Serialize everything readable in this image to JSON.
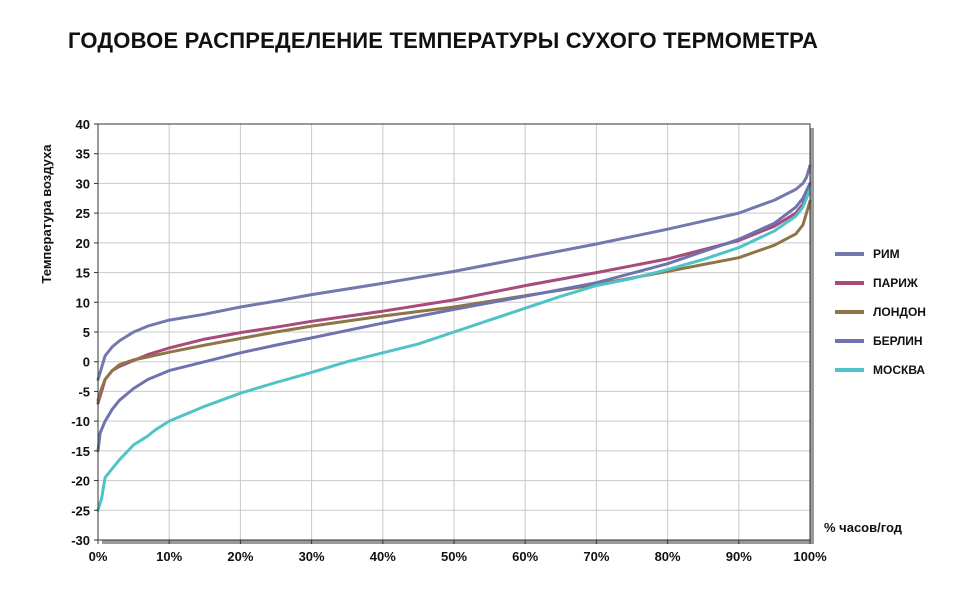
{
  "chart_data": {
    "type": "line",
    "title": "ГОДОВОЕ РАСПРЕДЕЛЕНИЕ ТЕМПЕРАТУРЫ СУХОГО ТЕРМОМЕТРА",
    "xlabel": "% часов/год",
    "ylabel": "Температура воздуха",
    "xlim": [
      0,
      100
    ],
    "ylim": [
      -30,
      40
    ],
    "x_ticks": [
      "0%",
      "10%",
      "20%",
      "30%",
      "40%",
      "50%",
      "60%",
      "70%",
      "80%",
      "90%",
      "100%"
    ],
    "y_ticks": [
      40,
      35,
      30,
      25,
      20,
      15,
      10,
      5,
      0,
      -5,
      -10,
      -15,
      -20,
      -25,
      -30
    ],
    "grid": true,
    "legend_position": "right",
    "series": [
      {
        "name": "РИМ",
        "color": "#7479ad",
        "points": [
          [
            0,
            -3
          ],
          [
            0.5,
            -1
          ],
          [
            1,
            1
          ],
          [
            2,
            2.5
          ],
          [
            3,
            3.5
          ],
          [
            5,
            5
          ],
          [
            7,
            6
          ],
          [
            10,
            7
          ],
          [
            15,
            8
          ],
          [
            20,
            9.2
          ],
          [
            25,
            10.2
          ],
          [
            30,
            11.3
          ],
          [
            40,
            13.2
          ],
          [
            50,
            15.2
          ],
          [
            60,
            17.5
          ],
          [
            70,
            19.8
          ],
          [
            80,
            22.3
          ],
          [
            90,
            25
          ],
          [
            95,
            27.2
          ],
          [
            98,
            29
          ],
          [
            99,
            30
          ],
          [
            99.5,
            31
          ],
          [
            100,
            33
          ]
        ]
      },
      {
        "name": "ПАРИЖ",
        "color": "#a84a7a",
        "points": [
          [
            0,
            -7
          ],
          [
            0.5,
            -5
          ],
          [
            1,
            -3
          ],
          [
            2,
            -1.5
          ],
          [
            3,
            -0.8
          ],
          [
            5,
            0.2
          ],
          [
            7,
            1.2
          ],
          [
            10,
            2.3
          ],
          [
            15,
            3.8
          ],
          [
            20,
            4.9
          ],
          [
            25,
            5.8
          ],
          [
            30,
            6.8
          ],
          [
            40,
            8.5
          ],
          [
            50,
            10.4
          ],
          [
            60,
            12.8
          ],
          [
            70,
            15
          ],
          [
            80,
            17.3
          ],
          [
            90,
            20.4
          ],
          [
            95,
            22.8
          ],
          [
            98,
            25
          ],
          [
            99,
            26.5
          ],
          [
            100,
            30
          ]
        ]
      },
      {
        "name": "ЛОНДОН",
        "color": "#8d7545",
        "points": [
          [
            0,
            -6.5
          ],
          [
            0.5,
            -4.5
          ],
          [
            1,
            -3
          ],
          [
            2,
            -1.5
          ],
          [
            3,
            -0.5
          ],
          [
            5,
            0.3
          ],
          [
            7,
            0.8
          ],
          [
            10,
            1.6
          ],
          [
            15,
            2.8
          ],
          [
            20,
            3.9
          ],
          [
            25,
            5
          ],
          [
            30,
            6
          ],
          [
            40,
            7.7
          ],
          [
            50,
            9.2
          ],
          [
            60,
            11.1
          ],
          [
            70,
            13
          ],
          [
            80,
            15.2
          ],
          [
            90,
            17.5
          ],
          [
            95,
            19.6
          ],
          [
            98,
            21.5
          ],
          [
            99,
            23
          ],
          [
            100,
            27
          ]
        ]
      },
      {
        "name": "БЕРЛИН",
        "color": "#6e73b0",
        "points": [
          [
            0,
            -15
          ],
          [
            0.3,
            -12
          ],
          [
            1,
            -10
          ],
          [
            2,
            -8
          ],
          [
            3,
            -6.5
          ],
          [
            5,
            -4.5
          ],
          [
            7,
            -3
          ],
          [
            10,
            -1.5
          ],
          [
            15,
            0
          ],
          [
            20,
            1.5
          ],
          [
            25,
            2.8
          ],
          [
            30,
            4
          ],
          [
            40,
            6.5
          ],
          [
            50,
            8.8
          ],
          [
            60,
            11
          ],
          [
            70,
            13.3
          ],
          [
            80,
            16.5
          ],
          [
            90,
            20.6
          ],
          [
            95,
            23.3
          ],
          [
            98,
            26
          ],
          [
            99,
            27.5
          ],
          [
            100,
            30
          ]
        ]
      },
      {
        "name": "МОСКВА",
        "color": "#4fc3c7",
        "points": [
          [
            0,
            -25
          ],
          [
            0.5,
            -23
          ],
          [
            1,
            -19.5
          ],
          [
            2,
            -18
          ],
          [
            3,
            -16.5
          ],
          [
            5,
            -14
          ],
          [
            7,
            -12.5
          ],
          [
            8,
            -11.5
          ],
          [
            10,
            -10
          ],
          [
            15,
            -7.5
          ],
          [
            20,
            -5.3
          ],
          [
            25,
            -3.5
          ],
          [
            30,
            -1.8
          ],
          [
            35,
            0
          ],
          [
            40,
            1.5
          ],
          [
            45,
            3
          ],
          [
            50,
            5
          ],
          [
            55,
            7
          ],
          [
            60,
            9
          ],
          [
            65,
            11
          ],
          [
            70,
            12.8
          ],
          [
            75,
            14
          ],
          [
            80,
            15.5
          ],
          [
            85,
            17.2
          ],
          [
            90,
            19.2
          ],
          [
            95,
            22
          ],
          [
            98,
            24.5
          ],
          [
            99,
            26
          ],
          [
            100,
            29
          ]
        ]
      }
    ]
  }
}
